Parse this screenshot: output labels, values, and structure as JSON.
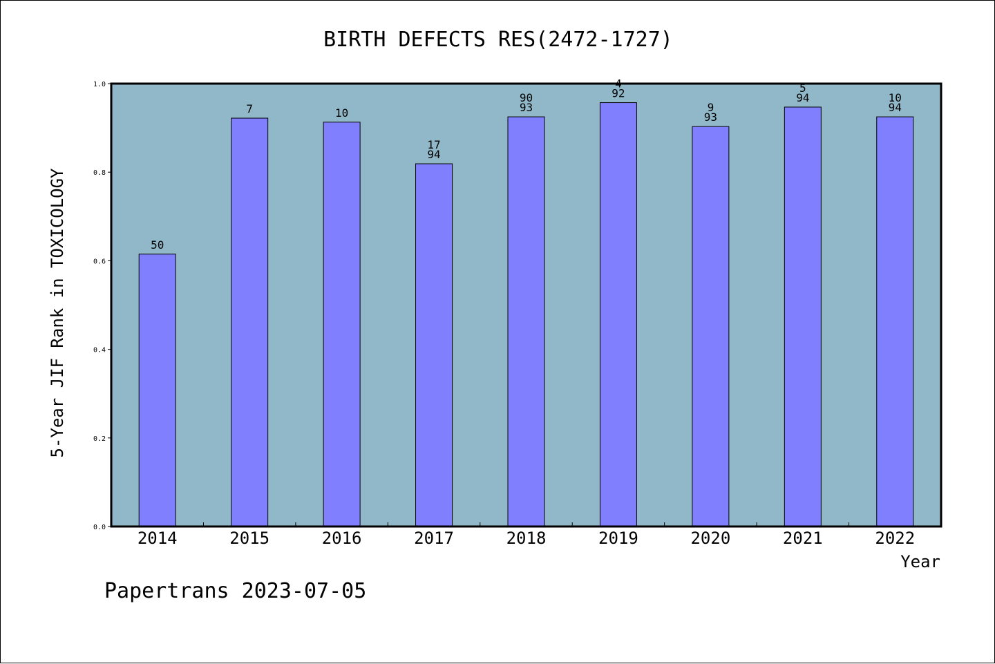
{
  "chart_data": {
    "type": "bar",
    "title": "BIRTH DEFECTS RES(2472-1727)",
    "xlabel": "Year",
    "ylabel": "5-Year JIF Rank in TOXICOLOGY",
    "ylim": [
      0,
      1.0
    ],
    "yticks": [
      "0.0",
      "0.2",
      "0.4",
      "0.6",
      "0.8",
      "1.0"
    ],
    "categories": [
      "2014",
      "2015",
      "2016",
      "2017",
      "2018",
      "2019",
      "2020",
      "2021",
      "2022"
    ],
    "values": [
      0.615,
      0.922,
      0.913,
      0.819,
      0.925,
      0.957,
      0.903,
      0.947,
      0.925
    ],
    "labels": [
      [
        "50"
      ],
      [
        "7"
      ],
      [
        "10"
      ],
      [
        "17",
        "94"
      ],
      [
        "90",
        "93"
      ],
      [
        "4",
        "92"
      ],
      [
        "9",
        "93"
      ],
      [
        "5",
        "94"
      ],
      [
        "10",
        "94"
      ]
    ],
    "colors": {
      "plot_bg": "#90b8c8",
      "bar": "#8080ff",
      "edge": "#000000"
    },
    "grid": false
  },
  "footer": "Papertrans 2023-07-05"
}
